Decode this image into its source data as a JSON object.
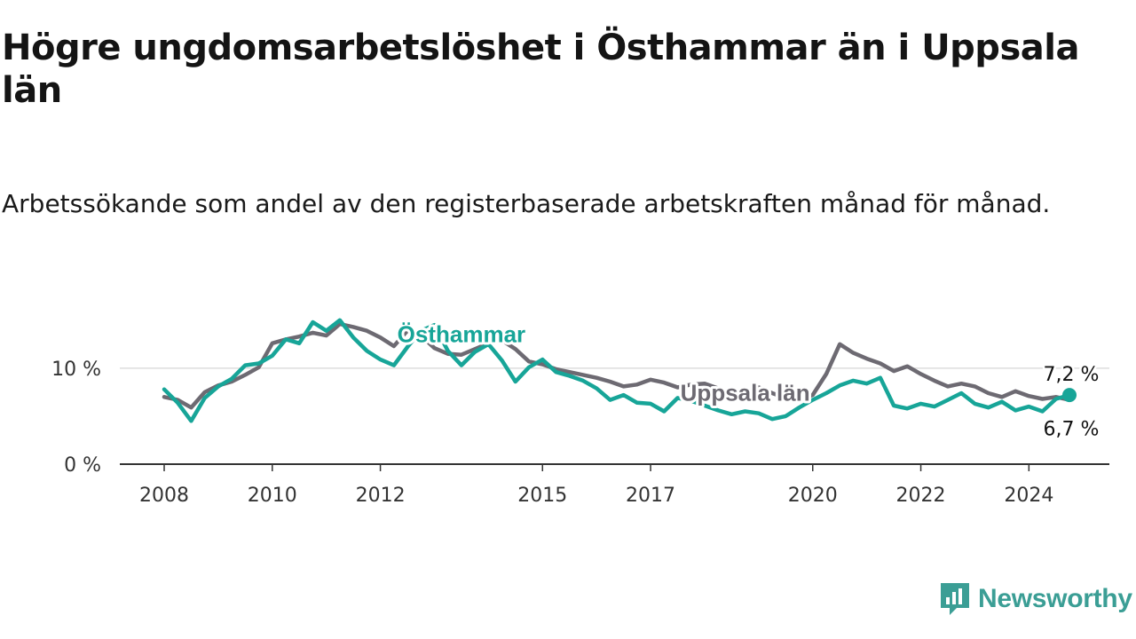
{
  "header": {
    "title": "Högre ungdomsarbetslöshet i Östhammar än i Uppsala län",
    "subtitle": "Arbetssökande som andel av den registerbaserade arbetskraften månad för månad."
  },
  "brand": {
    "name": "Newsworthy",
    "icon": "newsworthy-logo-icon",
    "color": "#3b9e95"
  },
  "chart_data": {
    "type": "line",
    "title": "Högre ungdomsarbetslöshet i Östhammar än i Uppsala län",
    "subtitle": "Arbetssökande som andel av den registerbaserade arbetskraften månad för månad.",
    "xlabel": "",
    "ylabel": "",
    "x_ticks": [
      2008,
      2010,
      2012,
      2015,
      2017,
      2020,
      2022,
      2024
    ],
    "y_ticks": [
      {
        "value": 0,
        "label": "0 %"
      },
      {
        "value": 10,
        "label": "10 %"
      }
    ],
    "xlim": [
      2008,
      2024.75
    ],
    "ylim": [
      0,
      16
    ],
    "grid": "horizontal",
    "legend": "inline labels",
    "series": [
      {
        "name": "Uppsala län",
        "color": "#6d6a72",
        "label_anchor": [
          2018.75,
          6.6
        ],
        "end_label": "6,7 %",
        "points": [
          [
            2008.0,
            7.0
          ],
          [
            2008.25,
            6.7
          ],
          [
            2008.5,
            5.9
          ],
          [
            2008.75,
            7.5
          ],
          [
            2009.0,
            8.2
          ],
          [
            2009.25,
            8.6
          ],
          [
            2009.5,
            9.3
          ],
          [
            2009.75,
            10.1
          ],
          [
            2010.0,
            12.6
          ],
          [
            2010.25,
            13.0
          ],
          [
            2010.5,
            13.3
          ],
          [
            2010.75,
            13.7
          ],
          [
            2011.0,
            13.4
          ],
          [
            2011.25,
            14.6
          ],
          [
            2011.5,
            14.3
          ],
          [
            2011.75,
            13.9
          ],
          [
            2012.0,
            13.2
          ],
          [
            2012.25,
            12.3
          ],
          [
            2012.5,
            13.9
          ],
          [
            2012.75,
            13.4
          ],
          [
            2013.0,
            12.1
          ],
          [
            2013.25,
            11.5
          ],
          [
            2013.5,
            11.4
          ],
          [
            2013.75,
            12.0
          ],
          [
            2014.0,
            12.6
          ],
          [
            2014.25,
            12.9
          ],
          [
            2014.5,
            12.0
          ],
          [
            2014.75,
            10.7
          ],
          [
            2015.0,
            10.4
          ],
          [
            2015.25,
            9.9
          ],
          [
            2015.5,
            9.6
          ],
          [
            2015.75,
            9.3
          ],
          [
            2016.0,
            9.0
          ],
          [
            2016.25,
            8.6
          ],
          [
            2016.5,
            8.1
          ],
          [
            2016.75,
            8.3
          ],
          [
            2017.0,
            8.8
          ],
          [
            2017.25,
            8.5
          ],
          [
            2017.5,
            8.0
          ],
          [
            2017.75,
            8.3
          ],
          [
            2018.0,
            8.4
          ],
          [
            2018.25,
            7.9
          ],
          [
            2018.5,
            7.4
          ],
          [
            2018.75,
            7.2
          ],
          [
            2019.0,
            8.0
          ],
          [
            2019.25,
            7.4
          ],
          [
            2019.5,
            6.9
          ],
          [
            2019.75,
            6.6
          ],
          [
            2020.0,
            7.2
          ],
          [
            2020.25,
            9.4
          ],
          [
            2020.5,
            12.5
          ],
          [
            2020.75,
            11.6
          ],
          [
            2021.0,
            11.0
          ],
          [
            2021.25,
            10.5
          ],
          [
            2021.5,
            9.7
          ],
          [
            2021.75,
            10.2
          ],
          [
            2022.0,
            9.4
          ],
          [
            2022.25,
            8.7
          ],
          [
            2022.5,
            8.1
          ],
          [
            2022.75,
            8.4
          ],
          [
            2023.0,
            8.1
          ],
          [
            2023.25,
            7.4
          ],
          [
            2023.5,
            7.0
          ],
          [
            2023.75,
            7.6
          ],
          [
            2024.0,
            7.1
          ],
          [
            2024.25,
            6.8
          ],
          [
            2024.5,
            7.0
          ],
          [
            2024.75,
            6.7
          ]
        ]
      },
      {
        "name": "Östhammar",
        "color": "#17a598",
        "label_anchor": [
          2013.5,
          12.7
        ],
        "end_label": "7,2 %",
        "points": [
          [
            2008.0,
            7.8
          ],
          [
            2008.25,
            6.4
          ],
          [
            2008.5,
            4.5
          ],
          [
            2008.75,
            6.9
          ],
          [
            2009.0,
            8.1
          ],
          [
            2009.25,
            8.9
          ],
          [
            2009.5,
            10.3
          ],
          [
            2009.75,
            10.5
          ],
          [
            2010.0,
            11.3
          ],
          [
            2010.25,
            13.0
          ],
          [
            2010.5,
            12.6
          ],
          [
            2010.75,
            14.8
          ],
          [
            2011.0,
            13.9
          ],
          [
            2011.25,
            15.0
          ],
          [
            2011.5,
            13.2
          ],
          [
            2011.75,
            11.8
          ],
          [
            2012.0,
            10.9
          ],
          [
            2012.25,
            10.3
          ],
          [
            2012.5,
            12.2
          ],
          [
            2012.75,
            13.9
          ],
          [
            2013.0,
            14.5
          ],
          [
            2013.25,
            11.8
          ],
          [
            2013.5,
            10.3
          ],
          [
            2013.75,
            11.7
          ],
          [
            2014.0,
            12.5
          ],
          [
            2014.25,
            10.8
          ],
          [
            2014.5,
            8.6
          ],
          [
            2014.75,
            10.1
          ],
          [
            2015.0,
            10.9
          ],
          [
            2015.25,
            9.6
          ],
          [
            2015.5,
            9.2
          ],
          [
            2015.75,
            8.7
          ],
          [
            2016.0,
            7.9
          ],
          [
            2016.25,
            6.7
          ],
          [
            2016.5,
            7.2
          ],
          [
            2016.75,
            6.4
          ],
          [
            2017.0,
            6.3
          ],
          [
            2017.25,
            5.5
          ],
          [
            2017.5,
            6.9
          ],
          [
            2017.75,
            6.6
          ],
          [
            2018.0,
            6.1
          ],
          [
            2018.25,
            5.6
          ],
          [
            2018.5,
            5.2
          ],
          [
            2018.75,
            5.5
          ],
          [
            2019.0,
            5.3
          ],
          [
            2019.25,
            4.7
          ],
          [
            2019.5,
            5.0
          ],
          [
            2019.75,
            5.9
          ],
          [
            2020.0,
            6.7
          ],
          [
            2020.25,
            7.4
          ],
          [
            2020.5,
            8.2
          ],
          [
            2020.75,
            8.7
          ],
          [
            2021.0,
            8.4
          ],
          [
            2021.25,
            9.0
          ],
          [
            2021.5,
            6.1
          ],
          [
            2021.75,
            5.8
          ],
          [
            2022.0,
            6.3
          ],
          [
            2022.25,
            6.0
          ],
          [
            2022.5,
            6.7
          ],
          [
            2022.75,
            7.4
          ],
          [
            2023.0,
            6.3
          ],
          [
            2023.25,
            5.9
          ],
          [
            2023.5,
            6.5
          ],
          [
            2023.75,
            5.6
          ],
          [
            2024.0,
            6.0
          ],
          [
            2024.25,
            5.5
          ],
          [
            2024.5,
            6.8
          ],
          [
            2024.75,
            7.2
          ]
        ]
      }
    ]
  }
}
